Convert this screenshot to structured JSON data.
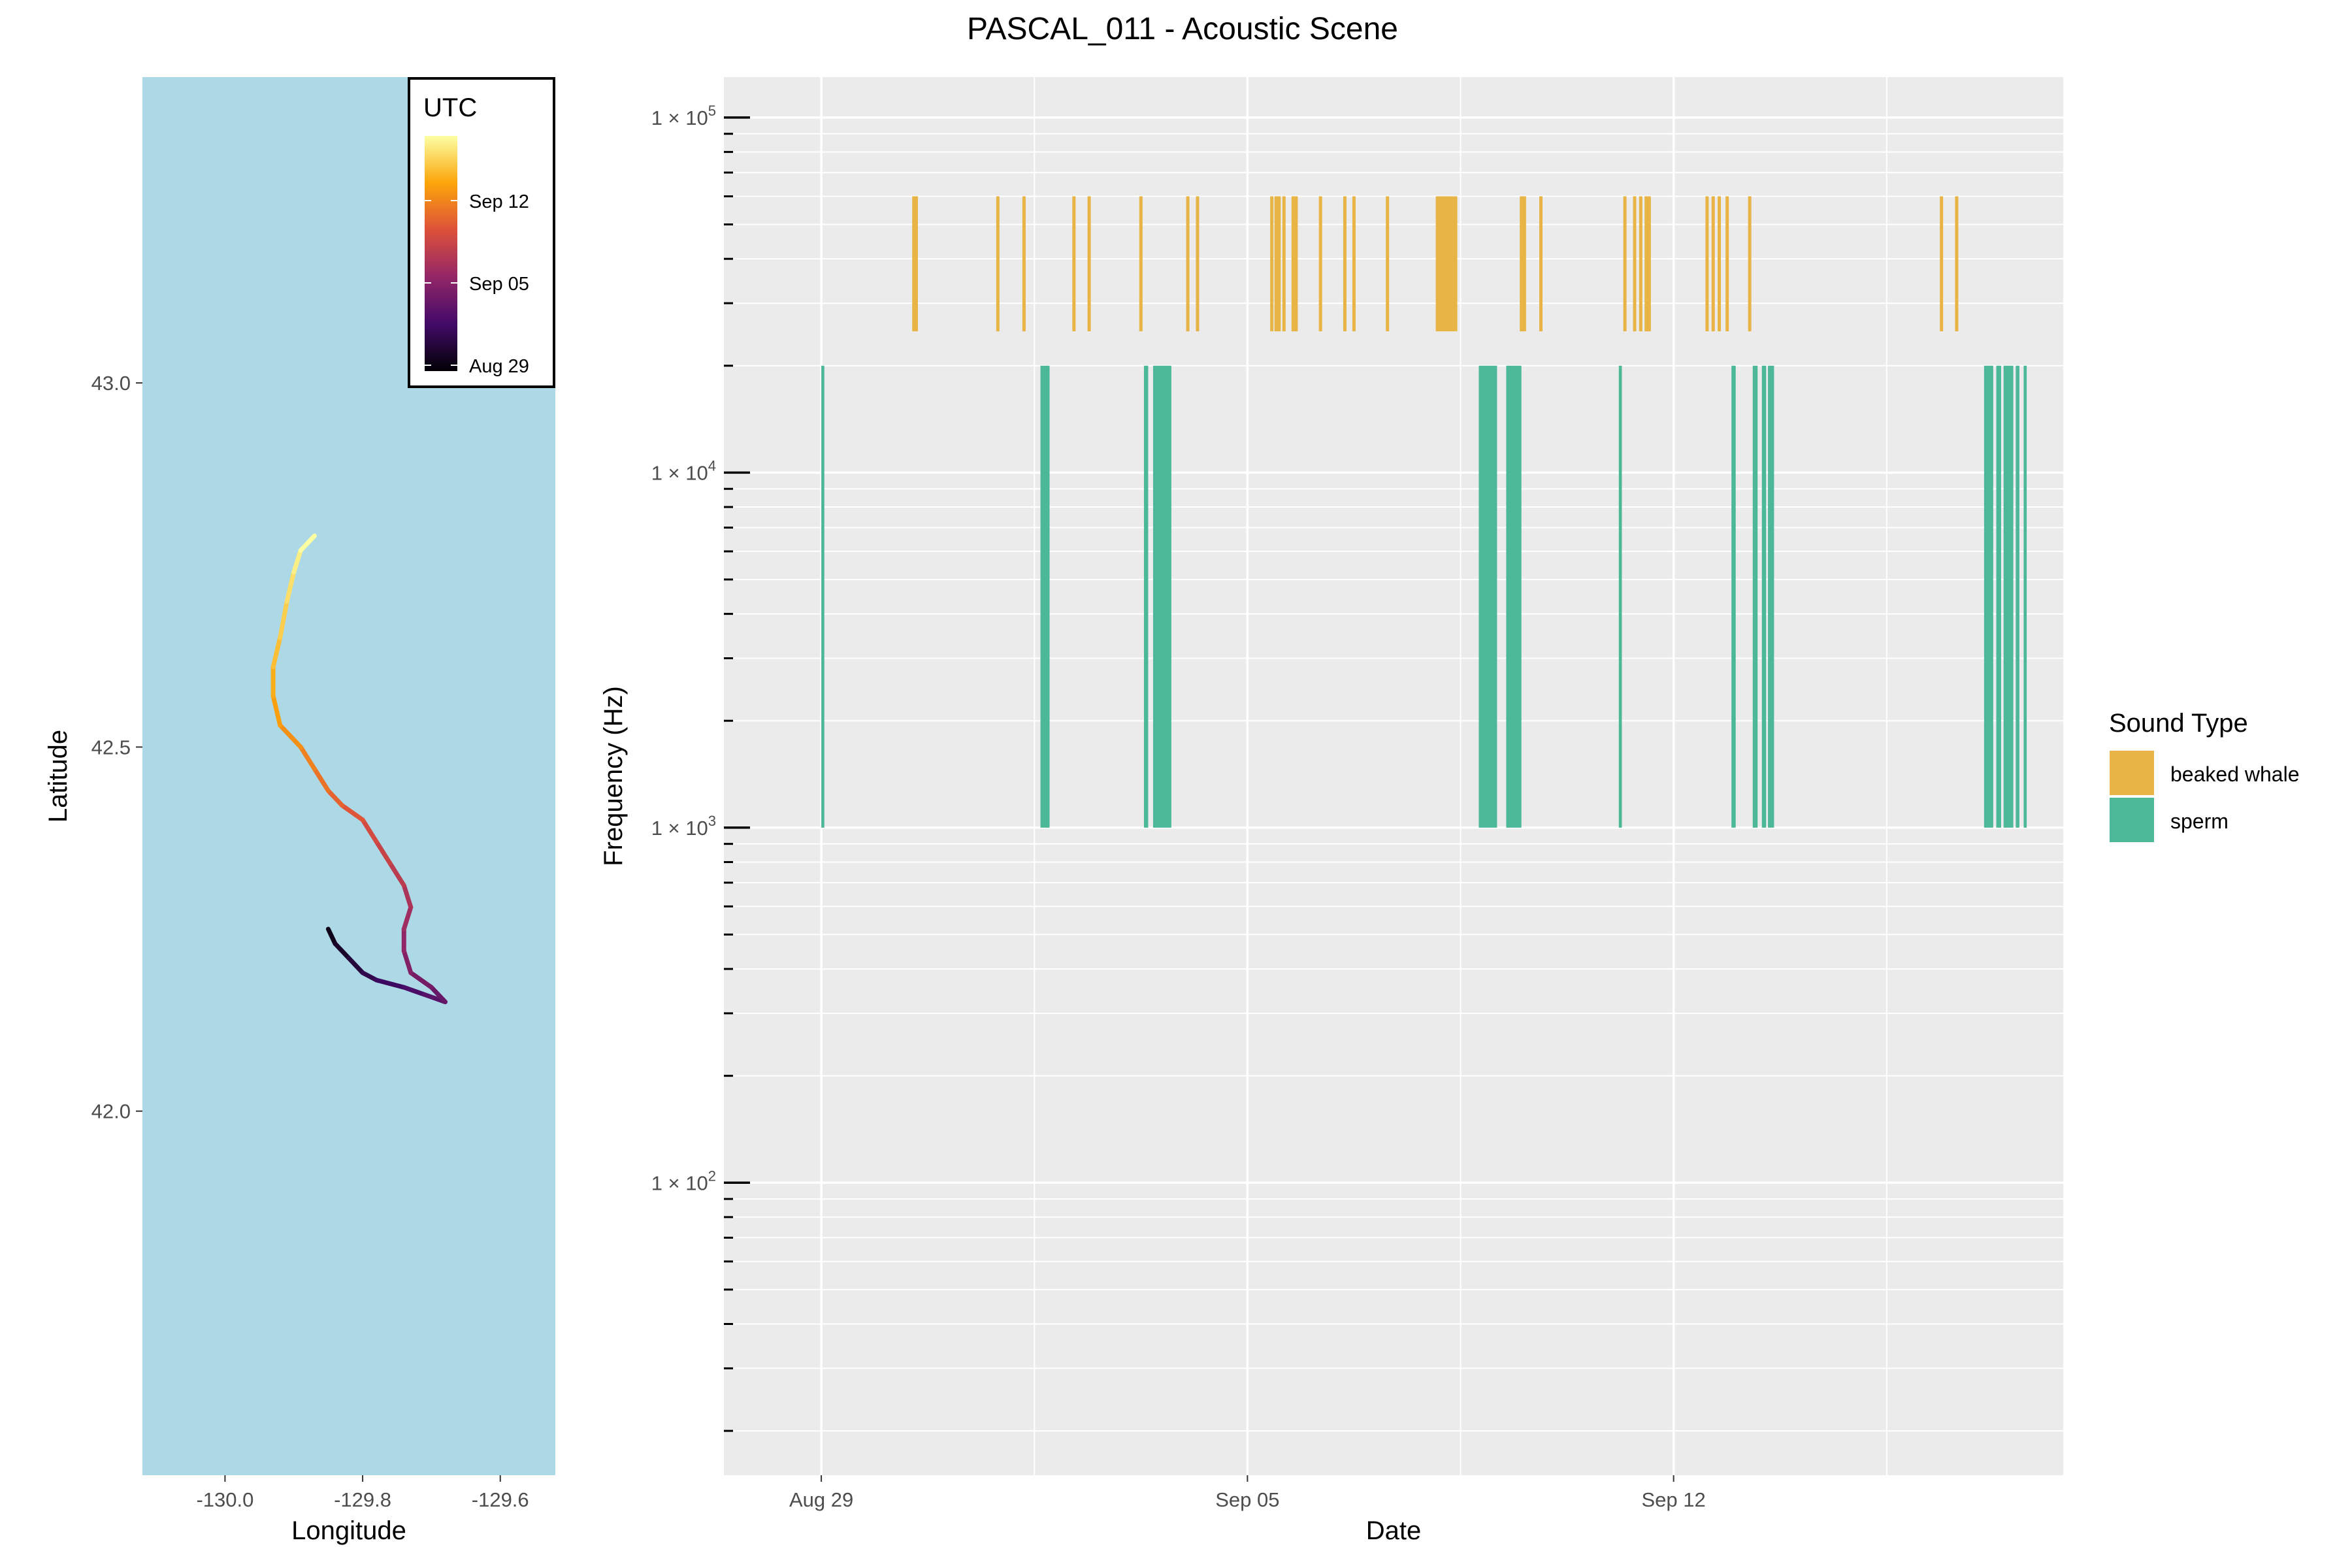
{
  "title": "PASCAL_011 - Acoustic Scene",
  "colors": {
    "ocean": "#add8e6",
    "panel": "#ebebeb",
    "grid": "#ffffff",
    "beaked_whale": "#e8b445",
    "sperm": "#4cb898"
  },
  "chart_data": [
    {
      "type": "line",
      "name": "map",
      "xlabel": "Longitude",
      "ylabel": "Latitude",
      "xlim": [
        -130.12,
        -129.52
      ],
      "ylim": [
        41.5,
        43.42
      ],
      "x_ticks": [
        -130.0,
        -129.8,
        -129.6
      ],
      "x_tick_labels": [
        "-130.0",
        "-129.8",
        "-129.6"
      ],
      "y_ticks": [
        42.0,
        42.5,
        43.0
      ],
      "y_tick_labels": [
        "42.0",
        "42.5",
        "43.0"
      ],
      "grid": false,
      "colorbar": {
        "title": "UTC",
        "labels": [
          "Sep 12",
          "Sep 05",
          "Aug 29"
        ],
        "label_days": [
          14,
          7,
          0
        ],
        "range_days": [
          -0.5,
          19.5
        ],
        "palette": [
          "#000004",
          "#420a68",
          "#932667",
          "#dd513a",
          "#fca50a",
          "#fcffa4"
        ]
      },
      "track": [
        [
          -129.85,
          42.25
        ],
        [
          -129.84,
          42.23
        ],
        [
          -129.82,
          42.21
        ],
        [
          -129.8,
          42.19
        ],
        [
          -129.78,
          42.18
        ],
        [
          -129.74,
          42.17
        ],
        [
          -129.71,
          42.16
        ],
        [
          -129.68,
          42.15
        ],
        [
          -129.7,
          42.17
        ],
        [
          -129.73,
          42.19
        ],
        [
          -129.74,
          42.22
        ],
        [
          -129.74,
          42.25
        ],
        [
          -129.73,
          42.28
        ],
        [
          -129.74,
          42.31
        ],
        [
          -129.76,
          42.34
        ],
        [
          -129.78,
          42.37
        ],
        [
          -129.8,
          42.4
        ],
        [
          -129.83,
          42.42
        ],
        [
          -129.85,
          42.44
        ],
        [
          -129.87,
          42.47
        ],
        [
          -129.89,
          42.5
        ],
        [
          -129.92,
          42.53
        ],
        [
          -129.93,
          42.57
        ],
        [
          -129.93,
          42.61
        ],
        [
          -129.92,
          42.65
        ],
        [
          -129.91,
          42.7
        ],
        [
          -129.9,
          42.74
        ],
        [
          -129.89,
          42.77
        ],
        [
          -129.87,
          42.79
        ]
      ]
    },
    {
      "type": "bar",
      "name": "acoustic-scene",
      "xlabel": "Date",
      "ylabel": "Frequency (Hz)",
      "y_scale": "log",
      "ylim": [
        15,
        130000
      ],
      "xlim_days": [
        -1.6,
        20.4
      ],
      "x_tick_labels": [
        "Aug 29",
        "Sep 05",
        "Sep 12"
      ],
      "x_tick_days": [
        0,
        7,
        14
      ],
      "y_tick_values": [
        100,
        1000,
        10000,
        100000
      ],
      "y_tick_base": "1 × 10",
      "y_tick_exponents": [
        "2",
        "3",
        "4",
        "5"
      ],
      "grid": true,
      "legend": {
        "title": "Sound Type",
        "position": "right",
        "entries": [
          "beaked whale",
          "sperm"
        ]
      },
      "series": [
        {
          "name": "beaked whale",
          "freq_range_hz": [
            25000,
            60000
          ],
          "detection_days": [
            1.52,
            1.56,
            2.9,
            3.33,
            4.15,
            4.4,
            5.25,
            6.02,
            6.18,
            7.4,
            7.47,
            7.52,
            7.6,
            7.75,
            7.8,
            8.2,
            8.6,
            8.75,
            9.3,
            10.12,
            10.17,
            10.22,
            10.27,
            10.32,
            10.37,
            10.42,
            11.5,
            11.55,
            11.82,
            13.2,
            13.36,
            13.46,
            13.55,
            13.6,
            14.55,
            14.65,
            14.75,
            14.88,
            15.25,
            18.4,
            18.65
          ]
        },
        {
          "name": "sperm",
          "freq_range_hz": [
            1000,
            20000
          ],
          "detection_intervals_days": [
            [
              0.0,
              0.05
            ],
            [
              3.6,
              3.75
            ],
            [
              5.3,
              5.37
            ],
            [
              5.45,
              5.75
            ],
            [
              10.8,
              11.1
            ],
            [
              11.25,
              11.5
            ],
            [
              13.1,
              13.15
            ],
            [
              14.95,
              15.02
            ],
            [
              15.3,
              15.38
            ],
            [
              15.45,
              15.52
            ],
            [
              15.55,
              15.65
            ],
            [
              19.1,
              19.25
            ],
            [
              19.3,
              19.38
            ],
            [
              19.42,
              19.58
            ],
            [
              19.62,
              19.68
            ],
            [
              19.75,
              19.8
            ]
          ]
        }
      ]
    }
  ]
}
